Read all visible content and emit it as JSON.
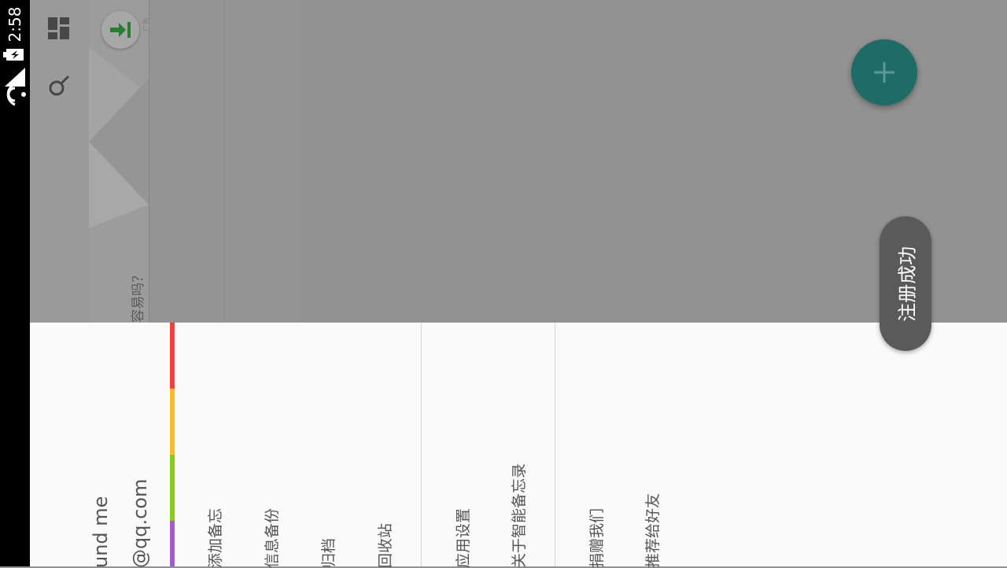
{
  "status_bar": {
    "time": "2:58",
    "icons": [
      "battery-charging-icon",
      "signal-icon",
      "wifi-icon"
    ]
  },
  "toolbar": {
    "icons": [
      "dashboard-icon",
      "search-icon"
    ]
  },
  "note_card": {
    "text": "容易吗？",
    "corner_tag": "广告"
  },
  "fab": {
    "icon": "plus-icon",
    "color": "#1f6b66"
  },
  "toast": {
    "text": "注册成功"
  },
  "drawer": {
    "account_name": "und me",
    "account_email": "@qq.com",
    "color_tags": [
      "#f44336",
      "#fbbc2c",
      "#8bc91d",
      "#a05fce"
    ],
    "menu_main": [
      {
        "label": "添加备忘"
      },
      {
        "label": "信息备份"
      },
      {
        "label": "归档"
      },
      {
        "label": "回收站"
      }
    ],
    "menu_settings": [
      {
        "label": "应用设置"
      },
      {
        "label": "关于智能备忘录"
      }
    ],
    "menu_social": [
      {
        "label": "捐赠我们"
      },
      {
        "label": "推荐给好友"
      }
    ]
  }
}
